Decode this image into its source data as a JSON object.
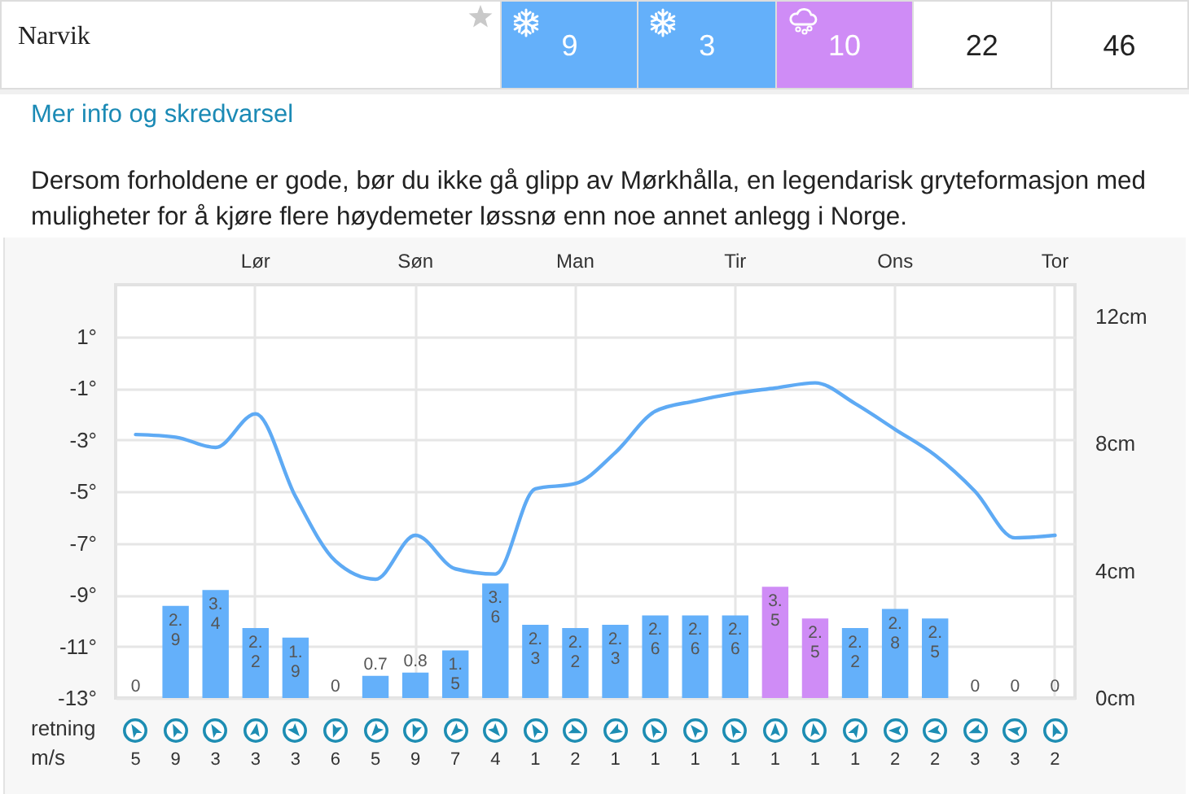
{
  "chart_data": [
    {
      "type": "other",
      "title": "Narvik",
      "values": [
        9,
        3,
        10,
        22,
        46
      ],
      "colors": [
        "#64b0fa",
        "#64b0fa",
        "#cf8cf6",
        "#ffffff",
        "#ffffff"
      ],
      "data_labels": true,
      "annotations": [
        "Mer info og skredvarsel",
        "Dersom forholdene er gode, bør du ikke gå glipp av Mørkhålla, en legendarisk gryteformasjon med muligheter for å kjøre flere høydemeter løssnø enn noe annet anlegg i Norge."
      ]
    },
    {
      "type": "bar",
      "categories": [
        null,
        null,
        null,
        "Lør",
        null,
        null,
        null,
        "Søn",
        null,
        null,
        null,
        "Man",
        null,
        null,
        null,
        "Tir",
        null,
        null,
        null,
        "Ons",
        null,
        null,
        null,
        "Tor"
      ],
      "series": [
        {
          "type": "bar",
          "axis": "y2",
          "colors": [
            "#64b0fa",
            "#64b0fa",
            "#64b0fa",
            "#64b0fa",
            "#64b0fa",
            "#64b0fa",
            "#64b0fa",
            "#64b0fa",
            "#64b0fa",
            "#64b0fa",
            "#64b0fa",
            "#64b0fa",
            "#64b0fa",
            "#64b0fa",
            "#64b0fa",
            "#64b0fa",
            "#cf8cf6",
            "#cf8cf6",
            "#64b0fa",
            "#64b0fa",
            "#64b0fa",
            "#64b0fa",
            "#64b0fa",
            "#64b0fa"
          ],
          "values": [
            0,
            2.9,
            3.4,
            2.2,
            1.9,
            0,
            0.7,
            0.8,
            1.5,
            3.6,
            2.3,
            2.2,
            2.3,
            2.6,
            2.6,
            2.6,
            3.5,
            2.5,
            2.2,
            2.8,
            2.5,
            0,
            0,
            0
          ],
          "value_labels": [
            "0",
            "2.9",
            "3.4",
            "2.2",
            "1.9",
            "0",
            "0.7",
            "0.8",
            "1.5",
            "3.6",
            "2.3",
            "2.2",
            "2.3",
            "2.6",
            "2.6",
            "2.6",
            "3.5",
            "2.5",
            "2.2",
            "2.8",
            "2.5",
            "0",
            "0",
            "0"
          ]
        },
        {
          "type": "line",
          "color": "#5eaaf4",
          "values": [
            -2.8,
            -2.9,
            -3.3,
            -2.0,
            -5.2,
            -7.7,
            -8.4,
            -6.7,
            -8.0,
            -8.2,
            -4.9,
            -4.7,
            -3.5,
            -1.9,
            -1.5,
            -1.2,
            -1.0,
            -0.8,
            -1.6,
            -2.6,
            -3.6,
            -5.0,
            -6.8,
            -6.7
          ]
        }
      ],
      "ylim": [
        -13,
        3
      ],
      "yticks": [
        {
          "value": -13,
          "label": "-13°"
        },
        {
          "value": -11,
          "label": "-11°"
        },
        {
          "value": -9,
          "label": "-9°"
        },
        {
          "value": -7,
          "label": "-7°"
        },
        {
          "value": -5,
          "label": "-5°"
        },
        {
          "value": -3,
          "label": "-3°"
        },
        {
          "value": -1,
          "label": "-1°"
        },
        {
          "value": 1,
          "label": "1°"
        }
      ],
      "y2lim": [
        0,
        13
      ],
      "y2ticks": [
        {
          "value": 0,
          "label": "0cm"
        },
        {
          "value": 4,
          "label": "4cm"
        },
        {
          "value": 8,
          "label": "8cm"
        },
        {
          "value": 12,
          "label": "12cm"
        }
      ],
      "grid": true
    },
    {
      "type": "other",
      "values": [
        5,
        9,
        3,
        3,
        3,
        6,
        5,
        9,
        7,
        4,
        1,
        2,
        1,
        1,
        1,
        1,
        1,
        1,
        1,
        2,
        2,
        3,
        3,
        2
      ],
      "data_labels": true,
      "annotations": [
        "retning",
        "m/s"
      ]
    }
  ]
}
